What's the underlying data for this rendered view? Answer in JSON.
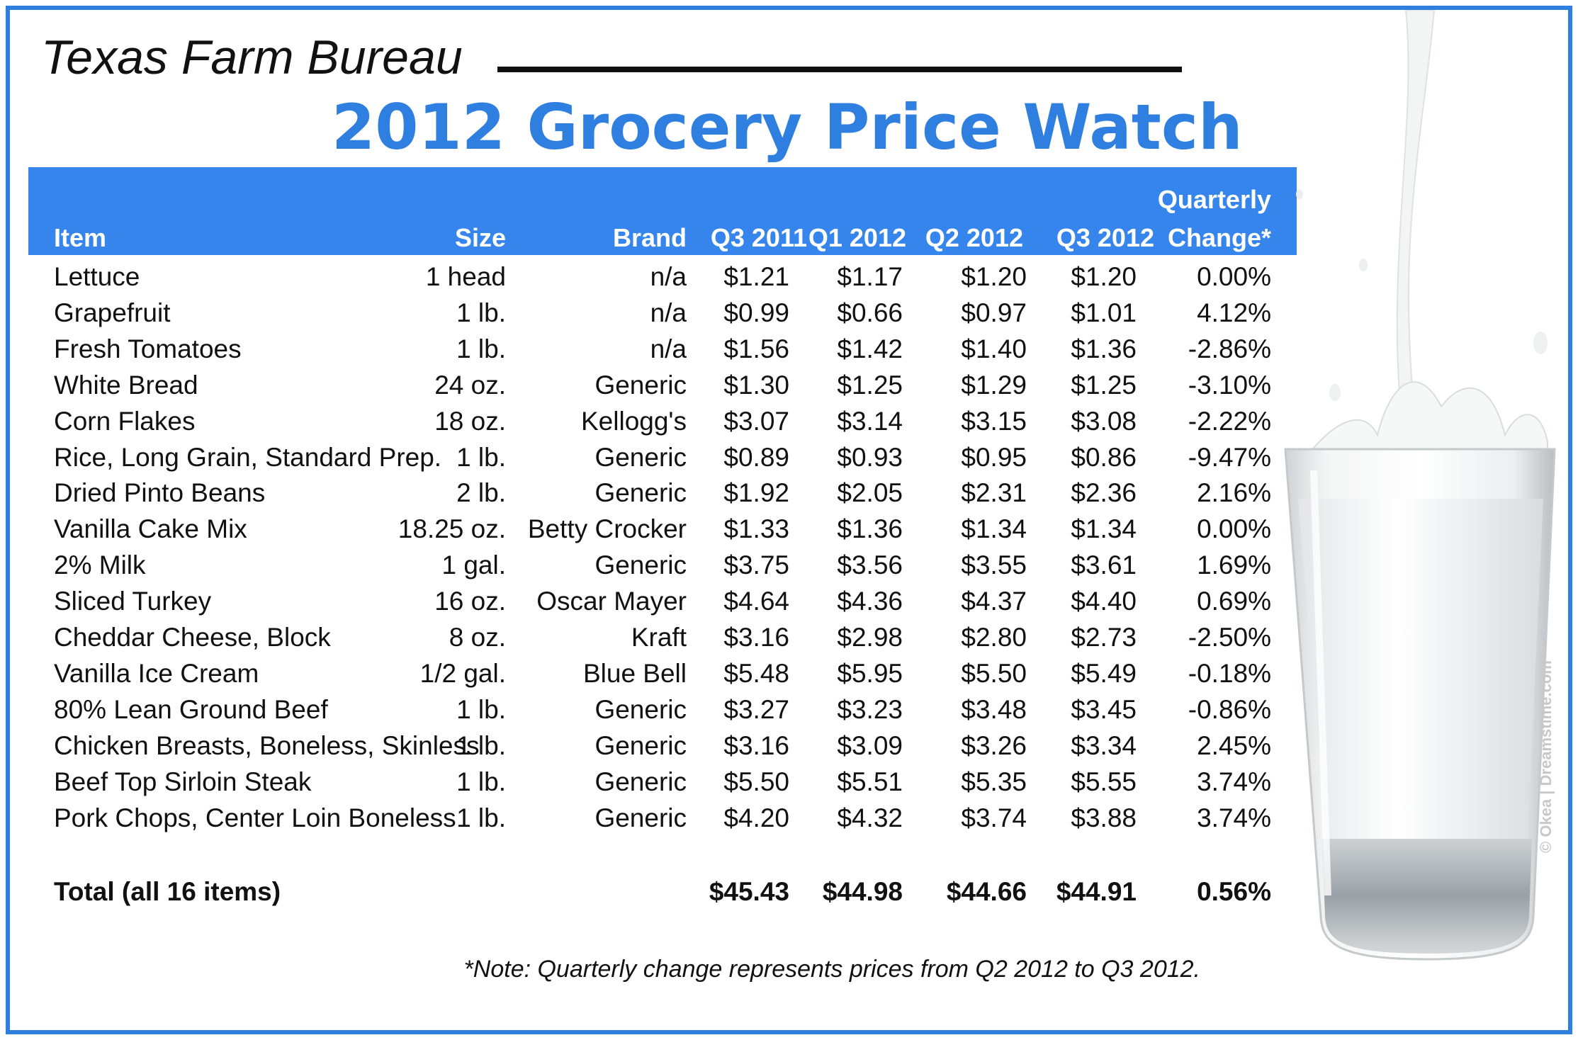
{
  "header": {
    "organization": "Texas Farm Bureau",
    "title": "2012 Grocery Price Watch"
  },
  "colors": {
    "accent": "#2f7fe0",
    "header_bar": "#3585ec",
    "text": "#111111"
  },
  "chart_data": {
    "type": "table",
    "columns": {
      "item": "Item",
      "size": "Size",
      "brand": "Brand",
      "q3_2011": "Q3 2011",
      "q1_2012": "Q1 2012",
      "q2_2012": "Q2 2012",
      "q3_2012": "Q3 2012",
      "change_line1": "Quarterly",
      "change_line2": "Change*"
    },
    "rows": [
      {
        "item": "Lettuce",
        "size": "1 head",
        "brand": "n/a",
        "q3_2011": "$1.21",
        "q1_2012": "$1.17",
        "q2_2012": "$1.20",
        "q3_2012": "$1.20",
        "change": "0.00%"
      },
      {
        "item": "Grapefruit",
        "size": "1 lb.",
        "brand": "n/a",
        "q3_2011": "$0.99",
        "q1_2012": "$0.66",
        "q2_2012": "$0.97",
        "q3_2012": "$1.01",
        "change": "4.12%"
      },
      {
        "item": "Fresh Tomatoes",
        "size": "1 lb.",
        "brand": "n/a",
        "q3_2011": "$1.56",
        "q1_2012": "$1.42",
        "q2_2012": "$1.40",
        "q3_2012": "$1.36",
        "change": "-2.86%"
      },
      {
        "item": "White Bread",
        "size": "24 oz.",
        "brand": "Generic",
        "q3_2011": "$1.30",
        "q1_2012": "$1.25",
        "q2_2012": "$1.29",
        "q3_2012": "$1.25",
        "change": "-3.10%"
      },
      {
        "item": "Corn Flakes",
        "size": "18 oz.",
        "brand": "Kellogg's",
        "q3_2011": "$3.07",
        "q1_2012": "$3.14",
        "q2_2012": "$3.15",
        "q3_2012": "$3.08",
        "change": "-2.22%"
      },
      {
        "item": "Rice, Long Grain, Standard Prep.",
        "size": "1 lb.",
        "brand": "Generic",
        "q3_2011": "$0.89",
        "q1_2012": "$0.93",
        "q2_2012": "$0.95",
        "q3_2012": "$0.86",
        "change": "-9.47%"
      },
      {
        "item": "Dried Pinto Beans",
        "size": "2 lb.",
        "brand": "Generic",
        "q3_2011": "$1.92",
        "q1_2012": "$2.05",
        "q2_2012": "$2.31",
        "q3_2012": "$2.36",
        "change": "2.16%"
      },
      {
        "item": "Vanilla Cake Mix",
        "size": "18.25 oz.",
        "brand": "Betty Crocker",
        "q3_2011": "$1.33",
        "q1_2012": "$1.36",
        "q2_2012": "$1.34",
        "q3_2012": "$1.34",
        "change": "0.00%"
      },
      {
        "item": "2% Milk",
        "size": "1 gal.",
        "brand": "Generic",
        "q3_2011": "$3.75",
        "q1_2012": "$3.56",
        "q2_2012": "$3.55",
        "q3_2012": "$3.61",
        "change": "1.69%"
      },
      {
        "item": "Sliced Turkey",
        "size": "16 oz.",
        "brand": "Oscar Mayer",
        "q3_2011": "$4.64",
        "q1_2012": "$4.36",
        "q2_2012": "$4.37",
        "q3_2012": "$4.40",
        "change": "0.69%"
      },
      {
        "item": "Cheddar Cheese, Block",
        "size": "8 oz.",
        "brand": "Kraft",
        "q3_2011": "$3.16",
        "q1_2012": "$2.98",
        "q2_2012": "$2.80",
        "q3_2012": "$2.73",
        "change": "-2.50%"
      },
      {
        "item": "Vanilla Ice Cream",
        "size": "1/2 gal.",
        "brand": "Blue Bell",
        "q3_2011": "$5.48",
        "q1_2012": "$5.95",
        "q2_2012": "$5.50",
        "q3_2012": "$5.49",
        "change": "-0.18%"
      },
      {
        "item": "80% Lean Ground Beef",
        "size": "1 lb.",
        "brand": "Generic",
        "q3_2011": "$3.27",
        "q1_2012": "$3.23",
        "q2_2012": "$3.48",
        "q3_2012": "$3.45",
        "change": "-0.86%"
      },
      {
        "item": "Chicken Breasts, Boneless, Skinless",
        "size": "1 lb.",
        "brand": "Generic",
        "q3_2011": "$3.16",
        "q1_2012": "$3.09",
        "q2_2012": "$3.26",
        "q3_2012": "$3.34",
        "change": "2.45%"
      },
      {
        "item": "Beef Top Sirloin Steak",
        "size": "1 lb.",
        "brand": "Generic",
        "q3_2011": "$5.50",
        "q1_2012": "$5.51",
        "q2_2012": "$5.35",
        "q3_2012": "$5.55",
        "change": "3.74%"
      },
      {
        "item": "Pork Chops, Center Loin Boneless",
        "size": "1 lb.",
        "brand": "Generic",
        "q3_2011": "$4.20",
        "q1_2012": "$4.32",
        "q2_2012": "$3.74",
        "q3_2012": "$3.88",
        "change": "3.74%"
      }
    ],
    "total": {
      "label": "Total (all 16 items)",
      "q3_2011": "$45.43",
      "q1_2012": "$44.98",
      "q2_2012": "$44.66",
      "q3_2012": "$44.91",
      "change": "0.56%"
    },
    "note": "*Note: Quarterly change represents prices from Q2 2012 to Q3 2012."
  },
  "image": {
    "subject_icon": "milk-glass-icon",
    "credit": "© Okea | Dreamstime.com"
  }
}
